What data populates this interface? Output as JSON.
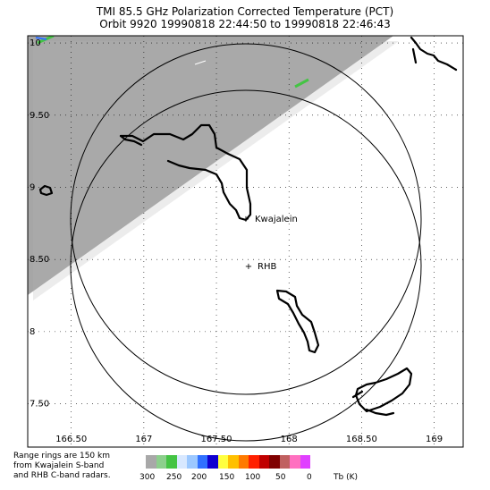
{
  "title": {
    "line1": "TMI 85.5 GHz Polarization Corrected Temperature (PCT)",
    "line2": "Orbit 9920 19990818 22:44:50 to 19990818 22:46:43"
  },
  "axes": {
    "lon_labels": [
      "166.50",
      "167",
      "167.50",
      "168",
      "168.50",
      "169"
    ],
    "lon_values": [
      166.5,
      167,
      167.5,
      168,
      168.5,
      169
    ],
    "lat_labels": [
      "10",
      "9.50",
      "9",
      "8.50",
      "8",
      "7.50"
    ],
    "lat_values": [
      10,
      9.5,
      9,
      8.5,
      8,
      7.5
    ],
    "lon_range": [
      166.2,
      169.2
    ],
    "lat_range": [
      7.2,
      10.05
    ],
    "grid": true
  },
  "places": [
    {
      "name": "Kwajalein",
      "marker": "+"
    },
    {
      "name": "RHB",
      "marker": "+"
    }
  ],
  "note": {
    "line1": "Range rings are 150 km",
    "line2": "from Kwajalein S-band",
    "line3": "and RHB C-band radars."
  },
  "legend": {
    "unit": "Tb (K)",
    "tick_labels": [
      "300",
      "250",
      "200",
      "150",
      "100",
      "50",
      "0"
    ],
    "colors": [
      "#a8a8a8",
      "#8ccf8c",
      "#44c444",
      "#d8e8ff",
      "#9cc8ff",
      "#3070ff",
      "#1000d0",
      "#ffff40",
      "#ffc000",
      "#ff7a00",
      "#ff2000",
      "#c00000",
      "#800000",
      "#c06060",
      "#ff70c0",
      "#e040ff"
    ]
  },
  "colors": {
    "swath_gray": "#a6a6a6",
    "coast": "#000000",
    "ring": "#000000"
  }
}
